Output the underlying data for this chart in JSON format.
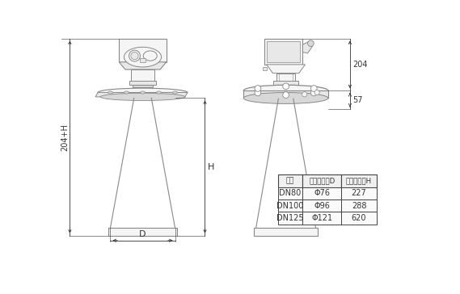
{
  "bg_color": "#ffffff",
  "line_color": "#888888",
  "dark_line": "#444444",
  "fill_light": "#f5f5f5",
  "fill_mid": "#e8e8e8",
  "fill_dark": "#d8d8d8",
  "text_color": "#333333",
  "table_cols": [
    "法兰",
    "啦叭口直径D",
    "啦叭口高度H"
  ],
  "table_rows": [
    [
      "DN80",
      "Φ76",
      "227"
    ],
    [
      "DN100",
      "Φ96",
      "288"
    ],
    [
      "DN125",
      "Φ121",
      "620"
    ]
  ],
  "dim_204H": "204+H",
  "dim_H": "H",
  "dim_D": "D",
  "dim_204": "204",
  "dim_57": "57"
}
